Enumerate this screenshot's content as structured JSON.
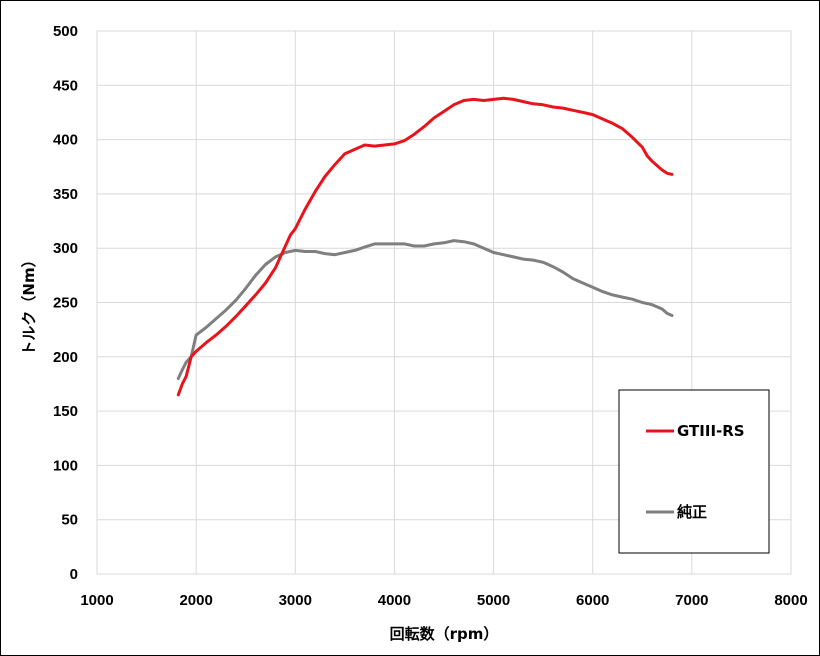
{
  "chart_data": {
    "type": "line",
    "title": "",
    "xlabel": "回転数（rpm）",
    "ylabel": "トルク（Nm）",
    "xlim": [
      1000,
      8000
    ],
    "ylim": [
      0,
      500
    ],
    "x_ticks": [
      1000,
      2000,
      3000,
      4000,
      5000,
      6000,
      7000,
      8000
    ],
    "y_ticks": [
      0,
      50,
      100,
      150,
      200,
      250,
      300,
      350,
      400,
      450,
      500
    ],
    "grid": "vertical and horizontal",
    "legend_position": "bottom-right",
    "series": [
      {
        "name": "GTIII-RS",
        "color": "#e8141b",
        "x": [
          1820,
          1860,
          1900,
          1950,
          2000,
          2100,
          2200,
          2300,
          2400,
          2500,
          2600,
          2700,
          2800,
          2850,
          2900,
          2950,
          3000,
          3100,
          3200,
          3300,
          3400,
          3500,
          3600,
          3700,
          3800,
          3900,
          4000,
          4100,
          4200,
          4300,
          4400,
          4500,
          4600,
          4700,
          4800,
          4900,
          5000,
          5100,
          5200,
          5300,
          5400,
          5500,
          5600,
          5700,
          5800,
          5900,
          6000,
          6100,
          6200,
          6300,
          6400,
          6500,
          6550,
          6600,
          6650,
          6700,
          6750,
          6800
        ],
        "y": [
          165,
          175,
          182,
          200,
          205,
          213,
          220,
          228,
          237,
          247,
          257,
          268,
          282,
          292,
          302,
          312,
          318,
          336,
          352,
          366,
          377,
          387,
          391,
          395,
          394,
          395,
          396,
          399,
          405,
          412,
          420,
          426,
          432,
          436,
          437,
          436,
          437,
          438,
          437,
          435,
          433,
          432,
          430,
          429,
          427,
          425,
          423,
          419,
          415,
          410,
          402,
          393,
          385,
          380,
          376,
          372,
          369,
          368
        ]
      },
      {
        "name": "純正",
        "color": "#7f7f7f",
        "x": [
          1820,
          1860,
          1900,
          1950,
          2000,
          2100,
          2200,
          2300,
          2400,
          2500,
          2600,
          2700,
          2800,
          2900,
          3000,
          3100,
          3200,
          3300,
          3400,
          3500,
          3600,
          3700,
          3800,
          3900,
          4000,
          4100,
          4200,
          4300,
          4400,
          4500,
          4600,
          4700,
          4800,
          4900,
          5000,
          5100,
          5200,
          5300,
          5400,
          5500,
          5600,
          5700,
          5800,
          5900,
          6000,
          6100,
          6200,
          6300,
          6400,
          6500,
          6600,
          6700,
          6750,
          6800
        ],
        "y": [
          180,
          188,
          195,
          200,
          220,
          227,
          235,
          243,
          252,
          263,
          275,
          285,
          292,
          296,
          298,
          297,
          297,
          295,
          294,
          296,
          298,
          301,
          304,
          304,
          304,
          304,
          302,
          302,
          304,
          305,
          307,
          306,
          304,
          300,
          296,
          294,
          292,
          290,
          289,
          287,
          283,
          278,
          272,
          268,
          264,
          260,
          257,
          255,
          253,
          250,
          248,
          244,
          240,
          238
        ]
      }
    ]
  }
}
